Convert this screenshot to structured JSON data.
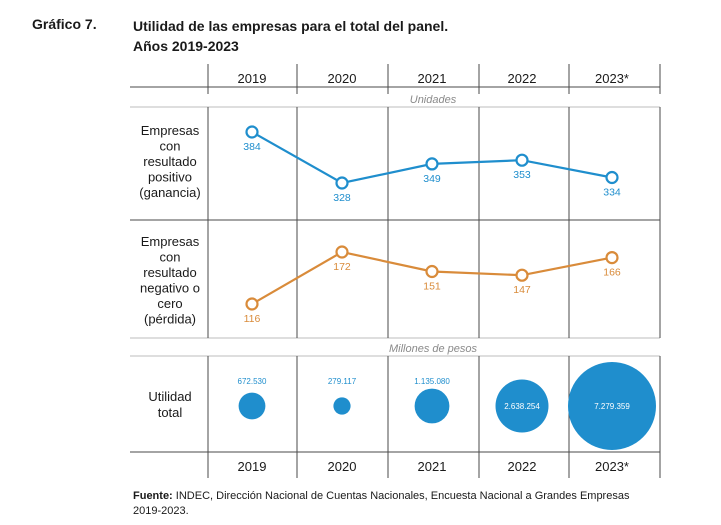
{
  "header": {
    "figure_label": "Gráfico 7.",
    "title_line1": "Utilidad de las empresas para el total del panel.",
    "title_line2": "Años 2019-2023"
  },
  "chart_data": {
    "type": "line",
    "categories": [
      "2019",
      "2020",
      "2021",
      "2022",
      "2023*"
    ],
    "units_top": "Unidades",
    "units_bottom": "Millones de pesos",
    "series": [
      {
        "label_lines": [
          "Empresas",
          "con",
          "resultado",
          "positivo",
          "(ganancia)"
        ],
        "color": "#1f8ecd",
        "values": [
          384,
          328,
          349,
          353,
          334
        ],
        "labels": [
          "384",
          "328",
          "349",
          "353",
          "334"
        ]
      },
      {
        "label_lines": [
          "Empresas",
          "con",
          "resultado",
          "negativo o",
          "cero",
          "(pérdida)"
        ],
        "color": "#d98b3a",
        "values": [
          116,
          172,
          151,
          147,
          166
        ],
        "labels": [
          "116",
          "172",
          "151",
          "147",
          "166"
        ]
      }
    ],
    "bubbles": {
      "label_lines": [
        "Utilidad",
        "total"
      ],
      "color": "#1f8ecd",
      "values": [
        672530,
        279117,
        1135080,
        2638254,
        7279359
      ],
      "labels": [
        "672.530",
        "279.117",
        "1.135.080",
        "2.638.254",
        "7.279.359"
      ]
    }
  },
  "footer": {
    "source_label": "Fuente:",
    "source_text": " INDEC, Dirección Nacional de Cuentas Nacionales, Encuesta Nacional a Grandes Empresas",
    "source_line2": "2019-2023."
  }
}
